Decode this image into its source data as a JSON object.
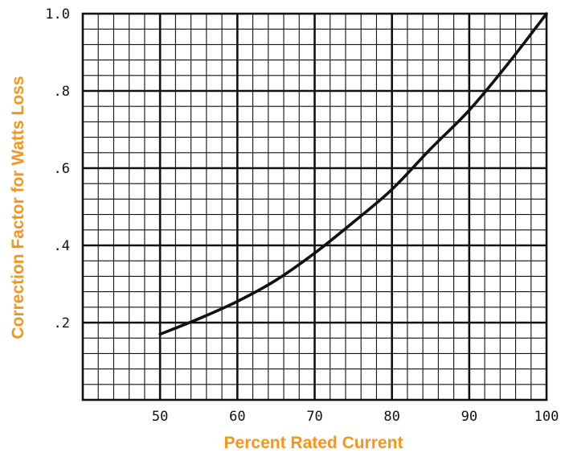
{
  "chart_data": {
    "type": "line",
    "title": "",
    "xlabel": "Percent Rated Current",
    "ylabel": "Correction Factor for Watts Loss",
    "xlim": [
      40,
      100
    ],
    "ylim": [
      0,
      1.0
    ],
    "x_ticks": [
      50,
      60,
      70,
      80,
      90,
      100
    ],
    "x_tick_labels": [
      "50",
      "60",
      "70",
      "80",
      "90",
      "100"
    ],
    "y_ticks": [
      0.2,
      0.4,
      0.6,
      0.8,
      1.0
    ],
    "y_tick_labels": [
      ".2",
      ".4",
      ".6",
      ".8",
      "1.0"
    ],
    "grid": true,
    "minor_grid": {
      "x_step": 2,
      "y_step": 0.04
    },
    "series": [
      {
        "x": [
          50,
          55,
          60,
          65,
          70,
          75,
          80,
          85,
          90,
          95,
          100
        ],
        "y": [
          0.17,
          0.21,
          0.255,
          0.31,
          0.38,
          0.46,
          0.545,
          0.65,
          0.75,
          0.87,
          1.0
        ]
      }
    ],
    "colors": {
      "axis_title": "#F7941D",
      "line": "#111111",
      "grid": "#111111"
    }
  }
}
